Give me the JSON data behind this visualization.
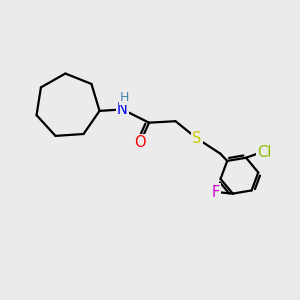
{
  "background_color": "#ebebeb",
  "bond_color": "#000000",
  "bond_width": 1.6,
  "atom_colors": {
    "N": "#0000ee",
    "O": "#ff0000",
    "S": "#cccc00",
    "Cl": "#88bb00",
    "F": "#cc00cc",
    "H": "#4488aa",
    "C": "#000000"
  },
  "font_size": 10.5,
  "figsize": [
    3.0,
    3.0
  ],
  "dpi": 100,
  "xlim": [
    0,
    10
  ],
  "ylim": [
    0,
    10
  ]
}
